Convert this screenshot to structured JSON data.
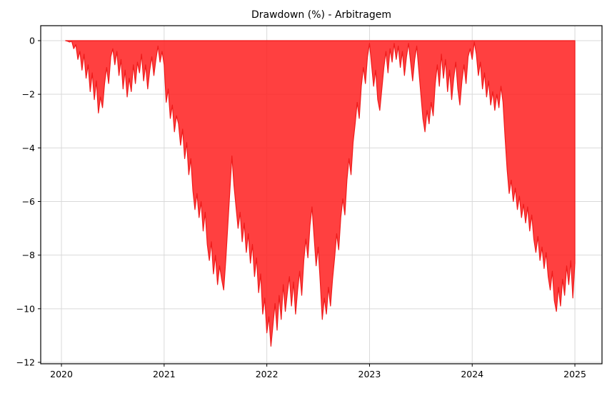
{
  "chart_data": {
    "type": "area",
    "title": "Drawdown (%) - Arbitragem",
    "xlabel": "",
    "ylabel": "",
    "series_name": "Drawdown (%)",
    "grid": true,
    "legend": "none",
    "baseline": 0,
    "xlim": [
      2019.798,
      2025.264
    ],
    "ylim": [
      -12.053,
      0.559
    ],
    "x_ticks": [
      2020,
      2021,
      2022,
      2023,
      2024,
      2025
    ],
    "x_tick_labels": [
      "2020",
      "2021",
      "2022",
      "2023",
      "2024",
      "2025"
    ],
    "y_ticks": [
      0,
      -2,
      -4,
      -6,
      -8,
      -10,
      -12
    ],
    "y_tick_labels": [
      "0",
      "−2",
      "−4",
      "−6",
      "−8",
      "−10",
      "−12"
    ],
    "colors": {
      "fill": "#ff1f1f",
      "fill_opacity": 0.85,
      "line": "#ef1b1b",
      "grid": "#d9d9d9",
      "spine": "#000000",
      "tick_text": "#000000",
      "background": "#ffffff"
    },
    "points": [
      [
        2020.04,
        0
      ],
      [
        2020.06,
        -0.02
      ],
      [
        2020.08,
        -0.05
      ],
      [
        2020.1,
        -0.02
      ],
      [
        2020.12,
        -0.3
      ],
      [
        2020.14,
        -0.15
      ],
      [
        2020.16,
        -0.7
      ],
      [
        2020.18,
        -0.4
      ],
      [
        2020.2,
        -1.1
      ],
      [
        2020.22,
        -0.5
      ],
      [
        2020.24,
        -1.4
      ],
      [
        2020.26,
        -0.9
      ],
      [
        2020.28,
        -1.9
      ],
      [
        2020.3,
        -1.2
      ],
      [
        2020.32,
        -2.2
      ],
      [
        2020.34,
        -1.5
      ],
      [
        2020.36,
        -2.7
      ],
      [
        2020.38,
        -2.1
      ],
      [
        2020.4,
        -2.5
      ],
      [
        2020.42,
        -1.6
      ],
      [
        2020.44,
        -1.0
      ],
      [
        2020.46,
        -1.6
      ],
      [
        2020.48,
        -0.6
      ],
      [
        2020.5,
        -0.3
      ],
      [
        2020.52,
        -0.9
      ],
      [
        2020.54,
        -0.4
      ],
      [
        2020.56,
        -1.3
      ],
      [
        2020.58,
        -0.7
      ],
      [
        2020.6,
        -1.8
      ],
      [
        2020.62,
        -1.1
      ],
      [
        2020.64,
        -2.1
      ],
      [
        2020.66,
        -1.4
      ],
      [
        2020.68,
        -1.9
      ],
      [
        2020.7,
        -0.9
      ],
      [
        2020.72,
        -1.6
      ],
      [
        2020.74,
        -0.8
      ],
      [
        2020.76,
        -1.2
      ],
      [
        2020.78,
        -0.5
      ],
      [
        2020.8,
        -1.5
      ],
      [
        2020.82,
        -0.9
      ],
      [
        2020.84,
        -1.8
      ],
      [
        2020.86,
        -1.1
      ],
      [
        2020.88,
        -0.6
      ],
      [
        2020.9,
        -1.3
      ],
      [
        2020.92,
        -0.7
      ],
      [
        2020.94,
        -0.2
      ],
      [
        2020.96,
        -0.8
      ],
      [
        2020.98,
        -0.4
      ],
      [
        2021.0,
        -0.9
      ],
      [
        2021.02,
        -2.3
      ],
      [
        2021.04,
        -1.8
      ],
      [
        2021.06,
        -2.9
      ],
      [
        2021.08,
        -2.4
      ],
      [
        2021.1,
        -3.4
      ],
      [
        2021.12,
        -2.8
      ],
      [
        2021.14,
        -3.1
      ],
      [
        2021.16,
        -3.9
      ],
      [
        2021.18,
        -3.3
      ],
      [
        2021.2,
        -4.4
      ],
      [
        2021.22,
        -3.8
      ],
      [
        2021.24,
        -5.0
      ],
      [
        2021.26,
        -4.4
      ],
      [
        2021.28,
        -5.6
      ],
      [
        2021.3,
        -6.3
      ],
      [
        2021.32,
        -5.7
      ],
      [
        2021.34,
        -6.6
      ],
      [
        2021.36,
        -6.0
      ],
      [
        2021.38,
        -7.1
      ],
      [
        2021.4,
        -6.4
      ],
      [
        2021.42,
        -7.6
      ],
      [
        2021.44,
        -8.2
      ],
      [
        2021.46,
        -7.5
      ],
      [
        2021.48,
        -8.7
      ],
      [
        2021.5,
        -8.0
      ],
      [
        2021.52,
        -9.1
      ],
      [
        2021.54,
        -8.4
      ],
      [
        2021.56,
        -8.9
      ],
      [
        2021.58,
        -9.3
      ],
      [
        2021.6,
        -8.2
      ],
      [
        2021.62,
        -6.9
      ],
      [
        2021.64,
        -5.6
      ],
      [
        2021.66,
        -4.3
      ],
      [
        2021.68,
        -5.4
      ],
      [
        2021.7,
        -6.2
      ],
      [
        2021.72,
        -7.0
      ],
      [
        2021.74,
        -6.4
      ],
      [
        2021.76,
        -7.5
      ],
      [
        2021.78,
        -6.8
      ],
      [
        2021.8,
        -7.9
      ],
      [
        2021.82,
        -7.2
      ],
      [
        2021.84,
        -8.3
      ],
      [
        2021.86,
        -7.6
      ],
      [
        2021.88,
        -8.8
      ],
      [
        2021.9,
        -8.1
      ],
      [
        2021.92,
        -9.4
      ],
      [
        2021.94,
        -8.7
      ],
      [
        2021.96,
        -10.2
      ],
      [
        2021.98,
        -9.6
      ],
      [
        2022.0,
        -10.9
      ],
      [
        2022.02,
        -10.3
      ],
      [
        2022.04,
        -11.4
      ],
      [
        2022.06,
        -10.6
      ],
      [
        2022.08,
        -9.8
      ],
      [
        2022.1,
        -10.8
      ],
      [
        2022.12,
        -9.5
      ],
      [
        2022.14,
        -10.4
      ],
      [
        2022.16,
        -9.1
      ],
      [
        2022.18,
        -10.1
      ],
      [
        2022.2,
        -9.4
      ],
      [
        2022.22,
        -8.8
      ],
      [
        2022.24,
        -9.9
      ],
      [
        2022.26,
        -9.0
      ],
      [
        2022.28,
        -10.2
      ],
      [
        2022.3,
        -9.3
      ],
      [
        2022.32,
        -8.6
      ],
      [
        2022.34,
        -9.5
      ],
      [
        2022.36,
        -8.2
      ],
      [
        2022.38,
        -7.4
      ],
      [
        2022.4,
        -8.1
      ],
      [
        2022.42,
        -6.9
      ],
      [
        2022.44,
        -6.2
      ],
      [
        2022.46,
        -7.3
      ],
      [
        2022.48,
        -8.4
      ],
      [
        2022.5,
        -7.7
      ],
      [
        2022.52,
        -9.0
      ],
      [
        2022.54,
        -10.4
      ],
      [
        2022.56,
        -9.6
      ],
      [
        2022.58,
        -10.2
      ],
      [
        2022.6,
        -9.2
      ],
      [
        2022.62,
        -9.9
      ],
      [
        2022.64,
        -8.9
      ],
      [
        2022.66,
        -8.1
      ],
      [
        2022.68,
        -7.2
      ],
      [
        2022.7,
        -7.8
      ],
      [
        2022.72,
        -6.6
      ],
      [
        2022.74,
        -5.9
      ],
      [
        2022.76,
        -6.5
      ],
      [
        2022.78,
        -5.2
      ],
      [
        2022.8,
        -4.4
      ],
      [
        2022.82,
        -5.0
      ],
      [
        2022.84,
        -3.8
      ],
      [
        2022.86,
        -3.1
      ],
      [
        2022.88,
        -2.3
      ],
      [
        2022.9,
        -2.9
      ],
      [
        2022.92,
        -1.7
      ],
      [
        2022.94,
        -1.0
      ],
      [
        2022.96,
        -1.6
      ],
      [
        2022.98,
        -0.6
      ],
      [
        2023.0,
        -0.1
      ],
      [
        2023.02,
        -0.9
      ],
      [
        2023.04,
        -1.7
      ],
      [
        2023.06,
        -1.1
      ],
      [
        2023.08,
        -2.2
      ],
      [
        2023.1,
        -2.6
      ],
      [
        2023.12,
        -1.8
      ],
      [
        2023.14,
        -1.0
      ],
      [
        2023.16,
        -0.4
      ],
      [
        2023.18,
        -1.2
      ],
      [
        2023.2,
        -0.3
      ],
      [
        2023.22,
        -0.8
      ],
      [
        2023.24,
        -0.1
      ],
      [
        2023.26,
        -0.7
      ],
      [
        2023.28,
        -0.2
      ],
      [
        2023.3,
        -1.0
      ],
      [
        2023.32,
        -0.4
      ],
      [
        2023.34,
        -1.3
      ],
      [
        2023.36,
        -0.6
      ],
      [
        2023.38,
        -0.1
      ],
      [
        2023.4,
        -0.8
      ],
      [
        2023.42,
        -1.5
      ],
      [
        2023.44,
        -0.7
      ],
      [
        2023.46,
        -0.2
      ],
      [
        2023.48,
        -1.1
      ],
      [
        2023.5,
        -2.0
      ],
      [
        2023.52,
        -2.9
      ],
      [
        2023.54,
        -3.4
      ],
      [
        2023.56,
        -2.6
      ],
      [
        2023.58,
        -3.1
      ],
      [
        2023.6,
        -2.3
      ],
      [
        2023.62,
        -2.8
      ],
      [
        2023.64,
        -1.6
      ],
      [
        2023.66,
        -0.9
      ],
      [
        2023.68,
        -1.7
      ],
      [
        2023.7,
        -0.5
      ],
      [
        2023.72,
        -1.4
      ],
      [
        2023.74,
        -0.7
      ],
      [
        2023.76,
        -1.9
      ],
      [
        2023.78,
        -1.1
      ],
      [
        2023.8,
        -2.2
      ],
      [
        2023.82,
        -1.4
      ],
      [
        2023.84,
        -0.8
      ],
      [
        2023.86,
        -1.8
      ],
      [
        2023.88,
        -2.4
      ],
      [
        2023.9,
        -1.5
      ],
      [
        2023.92,
        -0.9
      ],
      [
        2023.94,
        -1.6
      ],
      [
        2023.96,
        -0.6
      ],
      [
        2023.98,
        -0.3
      ],
      [
        2024.0,
        -0.7
      ],
      [
        2024.02,
        -0.05
      ],
      [
        2024.04,
        -0.5
      ],
      [
        2024.06,
        -1.3
      ],
      [
        2024.08,
        -0.8
      ],
      [
        2024.1,
        -1.8
      ],
      [
        2024.12,
        -1.2
      ],
      [
        2024.14,
        -2.1
      ],
      [
        2024.16,
        -1.5
      ],
      [
        2024.18,
        -2.4
      ],
      [
        2024.2,
        -1.9
      ],
      [
        2024.22,
        -2.6
      ],
      [
        2024.24,
        -2.0
      ],
      [
        2024.26,
        -2.5
      ],
      [
        2024.28,
        -1.7
      ],
      [
        2024.3,
        -2.3
      ],
      [
        2024.32,
        -3.6
      ],
      [
        2024.34,
        -4.8
      ],
      [
        2024.36,
        -5.7
      ],
      [
        2024.38,
        -5.2
      ],
      [
        2024.4,
        -6.0
      ],
      [
        2024.42,
        -5.5
      ],
      [
        2024.44,
        -6.3
      ],
      [
        2024.46,
        -5.8
      ],
      [
        2024.48,
        -6.6
      ],
      [
        2024.5,
        -6.1
      ],
      [
        2024.52,
        -6.8
      ],
      [
        2024.54,
        -6.2
      ],
      [
        2024.56,
        -7.1
      ],
      [
        2024.58,
        -6.5
      ],
      [
        2024.6,
        -7.4
      ],
      [
        2024.62,
        -7.9
      ],
      [
        2024.64,
        -7.3
      ],
      [
        2024.66,
        -8.2
      ],
      [
        2024.68,
        -7.7
      ],
      [
        2024.7,
        -8.5
      ],
      [
        2024.72,
        -7.9
      ],
      [
        2024.74,
        -8.8
      ],
      [
        2024.76,
        -9.3
      ],
      [
        2024.78,
        -8.6
      ],
      [
        2024.8,
        -9.7
      ],
      [
        2024.82,
        -10.1
      ],
      [
        2024.84,
        -9.2
      ],
      [
        2024.86,
        -9.9
      ],
      [
        2024.88,
        -8.9
      ],
      [
        2024.9,
        -9.5
      ],
      [
        2024.92,
        -8.4
      ],
      [
        2024.94,
        -9.1
      ],
      [
        2024.96,
        -8.2
      ],
      [
        2024.98,
        -9.6
      ],
      [
        2025.0,
        -8.3
      ]
    ]
  }
}
